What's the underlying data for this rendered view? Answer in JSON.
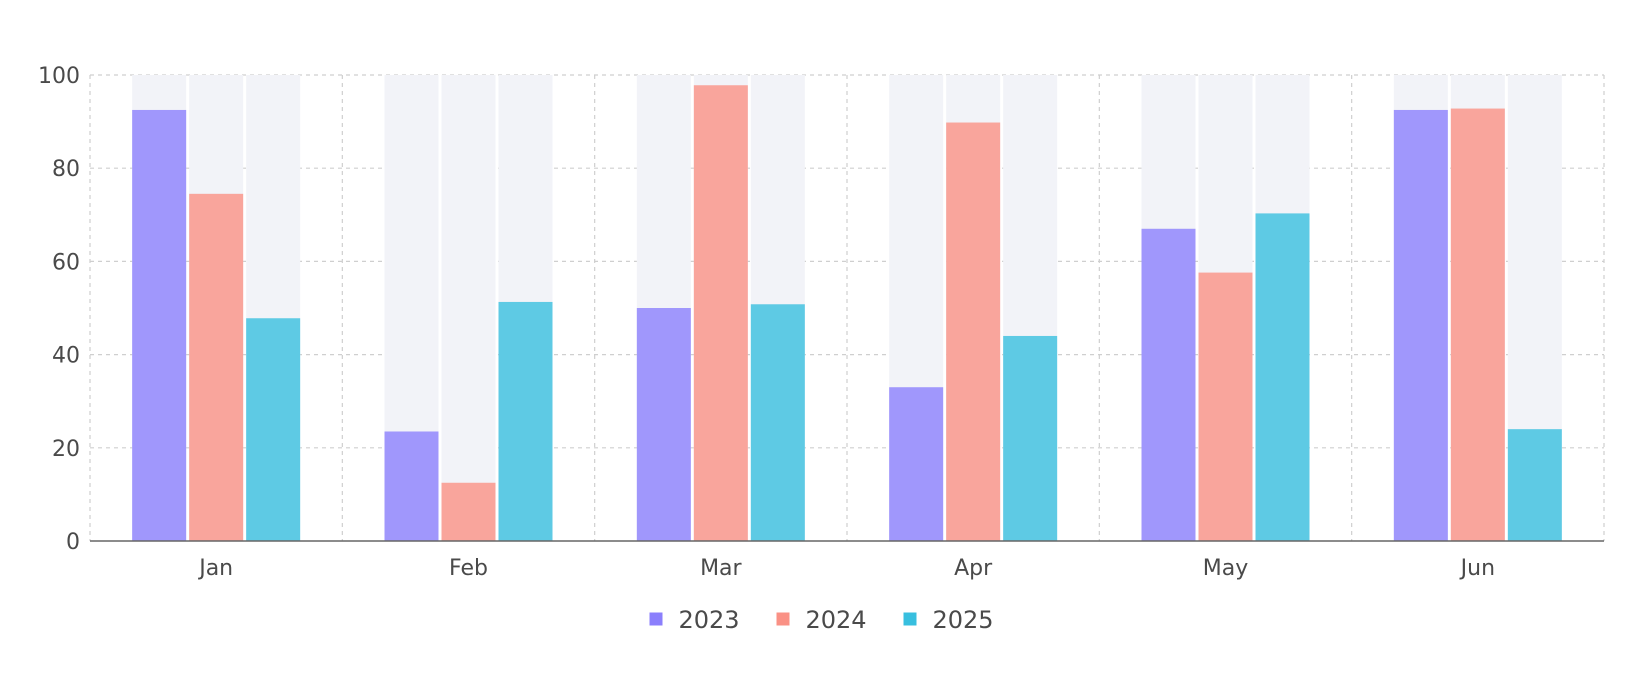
{
  "chart_data": {
    "type": "bar",
    "categories": [
      "Jan",
      "Feb",
      "Mar",
      "Apr",
      "May",
      "Jun"
    ],
    "series": [
      {
        "name": "2023",
        "color": "#8b7ffc",
        "values": [
          92.5,
          23.5,
          50,
          33,
          67,
          92.5
        ]
      },
      {
        "name": "2024",
        "color": "#fa9185",
        "values": [
          74.5,
          12.5,
          97.8,
          89.8,
          57.6,
          92.8
        ]
      },
      {
        "name": "2025",
        "color": "#38bfdf",
        "values": [
          47.8,
          51.3,
          50.8,
          44,
          70.3,
          24
        ]
      }
    ],
    "background_bar_value": 100,
    "background_bar_color": "#f2f3f8",
    "ylim": [
      0,
      100
    ],
    "yticks": [
      0,
      20,
      40,
      60,
      80,
      100
    ],
    "grid": true,
    "legend": "bottom-center",
    "title": "",
    "xlabel": "",
    "ylabel": ""
  }
}
